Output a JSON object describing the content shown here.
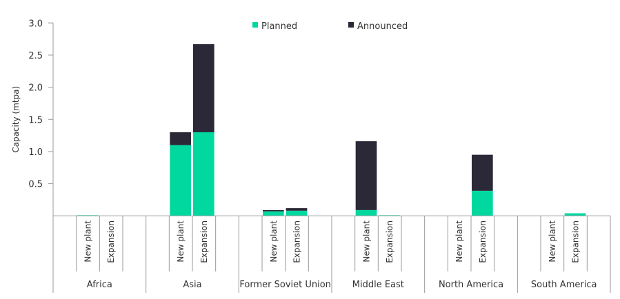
{
  "chart_data": {
    "type": "bar",
    "stacked": true,
    "title": "",
    "xlabel": "",
    "ylabel": "Capacity (mtpa)",
    "ylim": [
      0,
      3.0
    ],
    "yticks": [
      "0.5",
      "1.0",
      "1.5",
      "2.0",
      "2.5",
      "3.0"
    ],
    "ytick_values": [
      0.5,
      1.0,
      1.5,
      2.0,
      2.5,
      3.0
    ],
    "legend_position": "top-center",
    "grid": false,
    "groups": [
      "Africa",
      "Asia",
      "Former Soviet Union",
      "Middle East",
      "North America",
      "South America"
    ],
    "subcategories": [
      "New plant",
      "Expansion"
    ],
    "series": [
      {
        "name": "Planned",
        "color": "#00D8A0",
        "values": [
          [
            0.01,
            0
          ],
          [
            1.1,
            1.3
          ],
          [
            0.07,
            0.08
          ],
          [
            0.09,
            0.01
          ],
          [
            0,
            0.39
          ],
          [
            0,
            0.04
          ]
        ]
      },
      {
        "name": "Announced",
        "color": "#2B2838",
        "values": [
          [
            0,
            0
          ],
          [
            0.2,
            1.37
          ],
          [
            0.02,
            0.04
          ],
          [
            1.07,
            0
          ],
          [
            0,
            0.56
          ],
          [
            0,
            0
          ]
        ]
      }
    ]
  }
}
